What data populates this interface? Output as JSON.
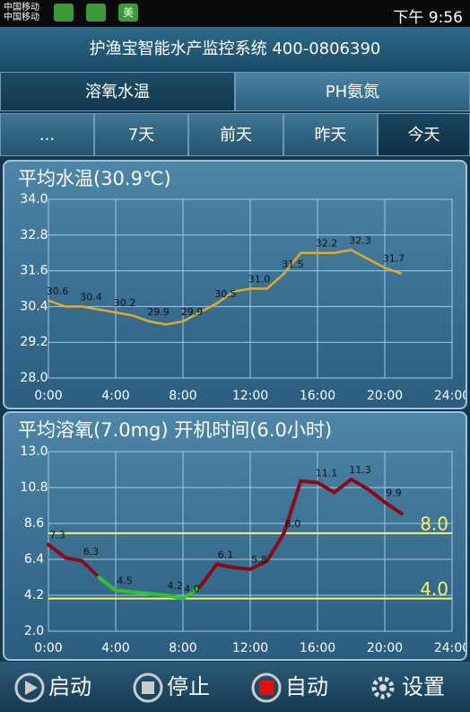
{
  "status_bar": {
    "carrier": [
      "中国移动",
      "中国移动"
    ],
    "app_icon": "美",
    "time": "下午 9:56"
  },
  "header": {
    "title": "护渔宝智能水产监控系统 400-0806390"
  },
  "tabs": [
    "溶氧水温",
    "PH氨氮"
  ],
  "day_tabs": [
    "...",
    "7天",
    "前天",
    "昨天",
    "今天"
  ],
  "chart_data": [
    {
      "type": "line",
      "title": "平均水温(30.9℃)",
      "x": [
        0,
        1,
        2,
        3,
        4,
        5,
        6,
        7,
        8,
        9,
        10,
        11,
        12,
        13,
        14,
        15,
        16,
        17,
        18,
        19,
        20,
        21
      ],
      "values": [
        30.6,
        30.4,
        30.4,
        30.3,
        30.2,
        30.1,
        29.9,
        29.8,
        29.9,
        30.2,
        30.5,
        30.9,
        31.0,
        31.0,
        31.5,
        32.2,
        32.2,
        32.2,
        32.3,
        32.0,
        31.7,
        31.5
      ],
      "value_labels": [
        "30.6",
        null,
        "30.4",
        null,
        "30.2",
        null,
        "29.9",
        null,
        "29.9",
        null,
        "30.5",
        null,
        "31.0",
        null,
        "31.5",
        null,
        "32.2",
        null,
        "32.3",
        null,
        "31.7",
        null
      ],
      "color": "#e0aa30",
      "xlim": [
        0,
        24
      ],
      "xticks": [
        {
          "value": 0,
          "label": "0:00"
        },
        {
          "value": 4,
          "label": "4:00"
        },
        {
          "value": 8,
          "label": "8:00"
        },
        {
          "value": 12,
          "label": "12:00"
        },
        {
          "value": 16,
          "label": "16:00"
        },
        {
          "value": 20,
          "label": "20:00"
        },
        {
          "value": 24,
          "label": "24:00"
        }
      ],
      "ylim": [
        28,
        34
      ],
      "yticks": [
        {
          "value": 28,
          "label": "28.0"
        },
        {
          "value": 29.2,
          "label": "29.2"
        },
        {
          "value": 30.4,
          "label": "30.4"
        },
        {
          "value": 31.6,
          "label": "31.6"
        },
        {
          "value": 32.8,
          "label": "32.8"
        },
        {
          "value": 34,
          "label": "34.0"
        }
      ],
      "grid": true
    },
    {
      "type": "line",
      "title": "平均溶氧(7.0mg)  开机时间(6.0小时)",
      "x": [
        0,
        1,
        2,
        3,
        4,
        5,
        6,
        7,
        8,
        9,
        10,
        11,
        12,
        13,
        14,
        15,
        16,
        17,
        18,
        19,
        20,
        21
      ],
      "values": [
        7.3,
        6.5,
        6.3,
        5.3,
        4.5,
        4.4,
        4.3,
        4.2,
        4.0,
        4.7,
        6.1,
        5.9,
        5.8,
        6.3,
        8.0,
        11.2,
        11.1,
        10.5,
        11.3,
        10.7,
        9.9,
        9.2
      ],
      "value_labels": [
        "7.3",
        null,
        "6.3",
        null,
        "4.5",
        null,
        null,
        "4.2",
        "4.0",
        null,
        "6.1",
        null,
        "5.8",
        null,
        "8.0",
        null,
        "11.1",
        null,
        "11.3",
        null,
        "9.9",
        null
      ],
      "color": "#8b0a18",
      "point_colors": [
        "#8b0a18",
        "#8b0a18",
        "#8b0a18",
        "#33c033",
        "#33c033",
        "#33c033",
        "#33c033",
        "#33c033",
        "#33c033",
        "#8b0a18",
        "#8b0a18",
        "#8b0a18",
        "#8b0a18",
        "#8b0a18",
        "#8b0a18",
        "#8b0a18",
        "#8b0a18",
        "#8b0a18",
        "#8b0a18",
        "#8b0a18",
        "#8b0a18",
        "#8b0a18"
      ],
      "hlines": [
        {
          "value": 8,
          "label": "8.0"
        },
        {
          "value": 4,
          "label": "4.0"
        }
      ],
      "hline_color": "#f5f56a",
      "xlim": [
        0,
        24
      ],
      "xticks": [
        {
          "value": 0,
          "label": "0:00"
        },
        {
          "value": 4,
          "label": "4:00"
        },
        {
          "value": 8,
          "label": "8:00"
        },
        {
          "value": 12,
          "label": "12:00"
        },
        {
          "value": 16,
          "label": "16:00"
        },
        {
          "value": 20,
          "label": "20:00"
        },
        {
          "value": 24,
          "label": "24:00"
        }
      ],
      "ylim": [
        2,
        13
      ],
      "yticks": [
        {
          "value": 2,
          "label": "2.0"
        },
        {
          "value": 4.2,
          "label": "4.2"
        },
        {
          "value": 6.4,
          "label": "6.4"
        },
        {
          "value": 8.6,
          "label": "8.6"
        },
        {
          "value": 10.8,
          "label": "10.8"
        },
        {
          "value": 13,
          "label": "13.0"
        }
      ],
      "grid": true
    }
  ],
  "bottom_bar": [
    "启动",
    "停止",
    "自动",
    "设置"
  ]
}
